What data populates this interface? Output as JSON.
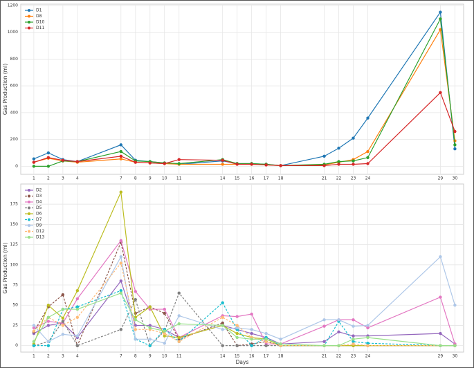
{
  "chart_data": [
    {
      "type": "line",
      "ylabel": "Gas Production (ml)",
      "x": [
        1,
        2,
        3,
        4,
        7,
        8,
        9,
        10,
        11,
        14,
        15,
        16,
        17,
        18,
        21,
        22,
        23,
        24,
        29,
        30
      ],
      "xticks": [
        1,
        2,
        3,
        4,
        7,
        8,
        9,
        10,
        11,
        14,
        15,
        16,
        17,
        18,
        21,
        22,
        23,
        24,
        29,
        30
      ],
      "xlim": [
        0.1,
        30.6
      ],
      "ylim": [
        -60,
        1210
      ],
      "yticks": [
        0,
        200,
        400,
        600,
        800,
        1000,
        1200
      ],
      "grid": true,
      "legend": "upper left",
      "series": [
        {
          "name": "D1",
          "color": "#1f77b4",
          "values": [
            55,
            100,
            50,
            35,
            160,
            45,
            35,
            25,
            15,
            40,
            20,
            20,
            15,
            5,
            75,
            135,
            210,
            360,
            1150,
            130
          ]
        },
        {
          "name": "D8",
          "color": "#ff7f0e",
          "values": [
            30,
            60,
            40,
            30,
            55,
            30,
            25,
            20,
            15,
            15,
            15,
            15,
            10,
            5,
            10,
            30,
            50,
            110,
            1020,
            190
          ]
        },
        {
          "name": "D10",
          "color": "#2ca02c",
          "values": [
            0,
            0,
            40,
            35,
            110,
            40,
            35,
            25,
            20,
            50,
            20,
            20,
            15,
            5,
            15,
            35,
            40,
            65,
            1100,
            160
          ]
        },
        {
          "name": "D11",
          "color": "#d62728",
          "values": [
            30,
            65,
            45,
            35,
            75,
            30,
            25,
            20,
            50,
            45,
            15,
            15,
            10,
            5,
            5,
            15,
            15,
            20,
            550,
            260
          ]
        }
      ]
    },
    {
      "type": "line",
      "ylabel": "Gas Production (ml)",
      "xlabel": "Days",
      "x": [
        1,
        2,
        3,
        4,
        7,
        8,
        9,
        10,
        11,
        14,
        15,
        16,
        17,
        18,
        21,
        22,
        23,
        24,
        29,
        30
      ],
      "xticks": [
        1,
        2,
        3,
        4,
        7,
        8,
        9,
        10,
        11,
        14,
        15,
        16,
        17,
        18,
        21,
        22,
        23,
        24,
        29,
        30
      ],
      "xlim": [
        0.1,
        30.6
      ],
      "ylim": [
        -8,
        200
      ],
      "yticks": [
        0,
        25,
        50,
        75,
        100,
        125,
        150,
        175
      ],
      "grid": true,
      "legend": "upper left",
      "series": [
        {
          "name": "D2",
          "color": "#9467bd",
          "dashed": false,
          "values": [
            15,
            25,
            28,
            10,
            80,
            25,
            25,
            20,
            10,
            25,
            20,
            15,
            10,
            2,
            5,
            17,
            12,
            12,
            15,
            2
          ]
        },
        {
          "name": "D3",
          "color": "#8c564b",
          "dashed": true,
          "values": [
            17,
            48,
            63,
            0,
            128,
            40,
            48,
            40,
            8,
            28,
            0,
            2,
            5,
            0,
            0,
            0,
            0,
            0,
            0,
            0
          ]
        },
        {
          "name": "D4",
          "color": "#e377c2",
          "dashed": false,
          "values": [
            22,
            30,
            28,
            58,
            130,
            67,
            45,
            45,
            10,
            37,
            36,
            39,
            2,
            2,
            24,
            32,
            32,
            22,
            60,
            2
          ]
        },
        {
          "name": "D5",
          "color": "#7f7f7f",
          "dashed": true,
          "values": [
            0,
            5,
            30,
            0,
            20,
            57,
            0,
            18,
            65,
            0,
            0,
            0,
            0,
            0,
            0,
            0,
            0,
            0,
            0,
            0
          ]
        },
        {
          "name": "D6",
          "color": "#bcbd22",
          "dashed": false,
          "values": [
            2,
            50,
            34,
            68,
            190,
            35,
            48,
            12,
            10,
            25,
            15,
            10,
            8,
            0,
            0,
            0,
            0,
            0,
            0,
            0
          ]
        },
        {
          "name": "D7",
          "color": "#17becf",
          "dashed": true,
          "values": [
            0,
            0,
            45,
            48,
            68,
            8,
            0,
            20,
            5,
            53,
            20,
            0,
            10,
            0,
            0,
            30,
            5,
            3,
            0,
            0
          ]
        },
        {
          "name": "D9",
          "color": "#aec7e8",
          "dashed": false,
          "values": [
            25,
            5,
            14,
            12,
            110,
            8,
            8,
            3,
            37,
            20,
            22,
            20,
            15,
            8,
            32,
            32,
            24,
            25,
            110,
            50
          ]
        },
        {
          "name": "D12",
          "color": "#ffbb78",
          "dashed": true,
          "values": [
            18,
            35,
            25,
            35,
            102,
            20,
            20,
            15,
            5,
            35,
            25,
            10,
            5,
            0,
            0,
            0,
            2,
            0,
            0,
            0
          ]
        },
        {
          "name": "D13",
          "color": "#98df8a",
          "dashed": false,
          "values": [
            5,
            35,
            45,
            45,
            65,
            32,
            22,
            18,
            27,
            25,
            10,
            8,
            8,
            2,
            0,
            0,
            8,
            10,
            0,
            0
          ]
        }
      ]
    }
  ]
}
